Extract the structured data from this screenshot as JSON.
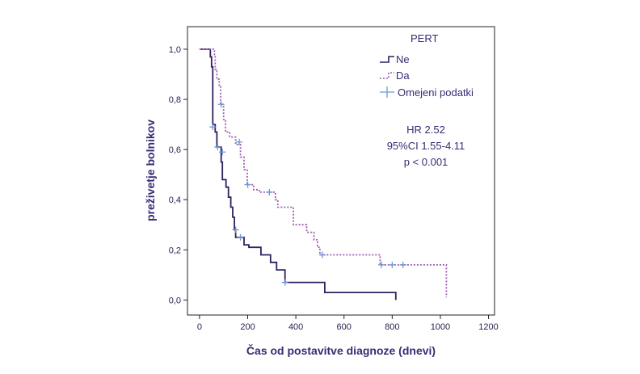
{
  "chart_data": {
    "type": "line",
    "title": "",
    "xlabel": "Čas od postavitve diagnoze (dnevi)",
    "ylabel": "preživetje bolnikov",
    "xlim": [
      -50,
      1225
    ],
    "ylim": [
      -0.06,
      1.09
    ],
    "x_ticks": [
      0,
      200,
      400,
      600,
      800,
      1000,
      1200
    ],
    "x_tick_labels": [
      "0",
      "200",
      "400",
      "600",
      "800",
      "1000",
      "1200"
    ],
    "y_ticks": [
      0,
      0.2,
      0.4,
      0.6,
      0.8,
      1.0
    ],
    "y_tick_labels": [
      "0,0",
      "0,2",
      "0,4",
      "0,6",
      "0,8",
      "1,0"
    ],
    "grid": false,
    "legend": {
      "title": "PERT",
      "placement": "top-right",
      "entries": [
        "Ne",
        "Da",
        "Omejeni podatki"
      ]
    },
    "annotations": [
      "HR 2.52",
      "95%CI 1.55-4.11",
      "p < 0.001"
    ],
    "series": [
      {
        "name": "Ne",
        "style": "solid",
        "color": "#2e2160",
        "points": [
          [
            0,
            1.0
          ],
          [
            45,
            1.0
          ],
          [
            45,
            0.97
          ],
          [
            50,
            0.97
          ],
          [
            50,
            0.93
          ],
          [
            55,
            0.93
          ],
          [
            55,
            0.7
          ],
          [
            65,
            0.7
          ],
          [
            65,
            0.67
          ],
          [
            72,
            0.67
          ],
          [
            72,
            0.61
          ],
          [
            90,
            0.61
          ],
          [
            90,
            0.55
          ],
          [
            95,
            0.55
          ],
          [
            95,
            0.48
          ],
          [
            110,
            0.48
          ],
          [
            110,
            0.45
          ],
          [
            120,
            0.45
          ],
          [
            120,
            0.41
          ],
          [
            130,
            0.41
          ],
          [
            130,
            0.37
          ],
          [
            138,
            0.37
          ],
          [
            138,
            0.33
          ],
          [
            145,
            0.33
          ],
          [
            145,
            0.28
          ],
          [
            150,
            0.28
          ],
          [
            150,
            0.25
          ],
          [
            185,
            0.25
          ],
          [
            185,
            0.22
          ],
          [
            205,
            0.22
          ],
          [
            205,
            0.21
          ],
          [
            255,
            0.21
          ],
          [
            255,
            0.18
          ],
          [
            295,
            0.18
          ],
          [
            295,
            0.15
          ],
          [
            320,
            0.15
          ],
          [
            320,
            0.12
          ],
          [
            355,
            0.12
          ],
          [
            355,
            0.07
          ],
          [
            520,
            0.07
          ],
          [
            520,
            0.03
          ],
          [
            815,
            0.03
          ],
          [
            815,
            0.0
          ]
        ],
        "censored": [
          [
            55,
            0.69
          ],
          [
            75,
            0.61
          ],
          [
            95,
            0.59
          ],
          [
            150,
            0.28
          ],
          [
            170,
            0.25
          ],
          [
            355,
            0.07
          ]
        ]
      },
      {
        "name": "Da",
        "style": "dotted",
        "color": "#a05db0",
        "points": [
          [
            0,
            1.0
          ],
          [
            62,
            1.0
          ],
          [
            62,
            0.97
          ],
          [
            65,
            0.97
          ],
          [
            65,
            0.92
          ],
          [
            72,
            0.92
          ],
          [
            72,
            0.88
          ],
          [
            82,
            0.88
          ],
          [
            82,
            0.85
          ],
          [
            88,
            0.85
          ],
          [
            88,
            0.78
          ],
          [
            100,
            0.78
          ],
          [
            100,
            0.72
          ],
          [
            108,
            0.72
          ],
          [
            108,
            0.67
          ],
          [
            125,
            0.67
          ],
          [
            125,
            0.65
          ],
          [
            150,
            0.65
          ],
          [
            150,
            0.62
          ],
          [
            170,
            0.62
          ],
          [
            170,
            0.57
          ],
          [
            185,
            0.57
          ],
          [
            185,
            0.52
          ],
          [
            198,
            0.52
          ],
          [
            198,
            0.46
          ],
          [
            225,
            0.46
          ],
          [
            225,
            0.44
          ],
          [
            248,
            0.44
          ],
          [
            248,
            0.43
          ],
          [
            315,
            0.43
          ],
          [
            315,
            0.4
          ],
          [
            325,
            0.4
          ],
          [
            325,
            0.37
          ],
          [
            390,
            0.37
          ],
          [
            390,
            0.3
          ],
          [
            445,
            0.3
          ],
          [
            445,
            0.27
          ],
          [
            475,
            0.27
          ],
          [
            475,
            0.24
          ],
          [
            490,
            0.24
          ],
          [
            490,
            0.21
          ],
          [
            500,
            0.21
          ],
          [
            500,
            0.18
          ],
          [
            750,
            0.18
          ],
          [
            750,
            0.14
          ],
          [
            1025,
            0.14
          ],
          [
            1025,
            0.01
          ]
        ],
        "censored": [
          [
            90,
            0.78
          ],
          [
            165,
            0.63
          ],
          [
            200,
            0.46
          ],
          [
            290,
            0.43
          ],
          [
            510,
            0.18
          ],
          [
            755,
            0.14
          ],
          [
            800,
            0.14
          ],
          [
            845,
            0.14
          ]
        ]
      }
    ]
  }
}
